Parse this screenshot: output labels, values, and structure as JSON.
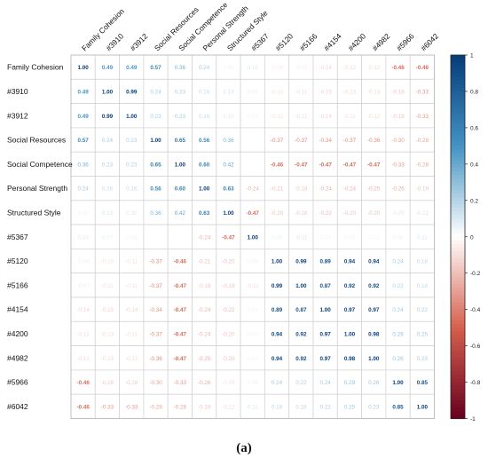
{
  "caption": "(a)",
  "chart_data": {
    "type": "heatmap",
    "title": "",
    "labels": [
      "Family Cohesion",
      "#3910",
      "#3912",
      "Social Resources",
      "Social Competence",
      "Personal Strength",
      "Structured Style",
      "#5367",
      "#5120",
      "#5166",
      "#4154",
      "#4200",
      "#4982",
      "#5966",
      "#6042"
    ],
    "matrix": [
      [
        1.0,
        0.49,
        0.49,
        0.57,
        0.36,
        0.24,
        0.05,
        0.1,
        -0.06,
        -0.07,
        -0.14,
        -0.12,
        -0.12,
        -0.46,
        -0.46
      ],
      [
        0.49,
        1.0,
        0.99,
        0.24,
        0.23,
        0.16,
        0.13,
        0.07,
        -0.1,
        -0.11,
        -0.15,
        -0.13,
        -0.13,
        -0.18,
        -0.33
      ],
      [
        0.49,
        0.99,
        1.0,
        0.23,
        0.23,
        0.16,
        0.1,
        0.05,
        -0.11,
        -0.11,
        -0.14,
        -0.11,
        -0.12,
        -0.18,
        -0.33
      ],
      [
        0.57,
        0.24,
        0.23,
        1.0,
        0.65,
        0.56,
        0.36,
        0.05,
        -0.37,
        -0.37,
        -0.34,
        -0.37,
        -0.36,
        -0.3,
        -0.28
      ],
      [
        0.36,
        0.23,
        0.23,
        0.65,
        1.0,
        0.6,
        0.42,
        0.12,
        -0.46,
        -0.47,
        -0.47,
        -0.47,
        -0.47,
        -0.33,
        -0.28
      ],
      [
        0.24,
        0.16,
        0.16,
        0.56,
        0.6,
        1.0,
        0.63,
        -0.24,
        -0.21,
        -0.18,
        -0.24,
        -0.24,
        -0.25,
        -0.26,
        -0.19
      ],
      [
        0.05,
        0.13,
        0.1,
        0.36,
        0.42,
        0.63,
        1.0,
        -0.47,
        -0.2,
        -0.18,
        -0.22,
        -0.2,
        -0.2,
        -0.09,
        -0.12
      ],
      [
        0.1,
        0.07,
        0.05,
        0.05,
        0.12,
        -0.24,
        -0.47,
        1.0,
        0.06,
        -0.11,
        0.04,
        0.05,
        0.04,
        0.06,
        0.11
      ],
      [
        -0.06,
        -0.1,
        -0.11,
        -0.37,
        -0.46,
        -0.21,
        -0.2,
        0.06,
        1.0,
        0.99,
        0.89,
        0.94,
        0.94,
        0.24,
        0.18
      ],
      [
        -0.07,
        -0.11,
        -0.11,
        -0.37,
        -0.47,
        -0.18,
        -0.18,
        -0.11,
        0.99,
        1.0,
        0.87,
        0.92,
        0.92,
        0.22,
        0.18
      ],
      [
        -0.14,
        -0.15,
        -0.14,
        -0.34,
        -0.47,
        -0.24,
        -0.22,
        0.04,
        0.89,
        0.87,
        1.0,
        0.97,
        0.97,
        0.24,
        0.22
      ],
      [
        -0.12,
        -0.13,
        -0.11,
        -0.37,
        -0.47,
        -0.24,
        -0.2,
        0.05,
        0.94,
        0.92,
        0.97,
        1.0,
        0.98,
        0.29,
        0.25
      ],
      [
        -0.12,
        -0.13,
        -0.12,
        -0.36,
        -0.47,
        -0.25,
        -0.2,
        0.04,
        0.94,
        0.92,
        0.97,
        0.98,
        1.0,
        0.26,
        0.23
      ],
      [
        -0.46,
        -0.18,
        -0.18,
        -0.3,
        -0.33,
        -0.26,
        -0.09,
        0.06,
        0.24,
        0.22,
        0.24,
        0.29,
        0.26,
        1.0,
        0.85
      ],
      [
        -0.46,
        -0.33,
        -0.33,
        -0.28,
        -0.28,
        -0.19,
        -0.12,
        0.11,
        0.18,
        0.18,
        0.22,
        0.25,
        0.23,
        0.85,
        1.0
      ]
    ],
    "hide_labels_for": [
      [
        3,
        7
      ],
      [
        7,
        3
      ],
      [
        4,
        7
      ],
      [
        7,
        4
      ]
    ],
    "colorbar_ticks": [
      "1",
      "0.8",
      "0.6",
      "0.4",
      "0.2",
      "0",
      "-0.2",
      "-0.4",
      "-0.6",
      "-0.8",
      "-1"
    ],
    "range": [
      -1,
      1
    ],
    "colors": {
      "pos": "#063c78",
      "neg": "#67001f",
      "mid": "#ffffff",
      "grid": "#d4d4d4"
    }
  }
}
